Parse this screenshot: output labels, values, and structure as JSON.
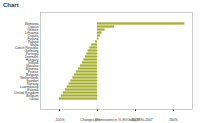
{
  "chart_data": {
    "type": "bar",
    "title": "Chart",
    "orientation": "horizontal",
    "x_label": "Changes of emissions in % (Kt/Gwh) 1990-2007",
    "categories": [
      "Romania",
      "Cyprus",
      "Greece",
      "Lithuania",
      "Croatia",
      "Finland",
      "Poland",
      "Malta",
      "Czech Republic",
      "Germany",
      "Portugal",
      "Denmark",
      "Hungary",
      "Ireland",
      "Slovakia",
      "Slovenia",
      "France",
      "Bulgaria",
      "Netherlands",
      "Sweden",
      "Norway",
      "Luxembourg",
      "Estonia",
      "United Kingdom",
      "Belgium",
      "Latvia"
    ],
    "values": [
      230,
      45,
      20,
      12,
      8,
      4,
      -5,
      -15,
      -20,
      -25,
      -28,
      -32,
      -36,
      -40,
      -45,
      -50,
      -55,
      -60,
      -65,
      -70,
      -75,
      -80,
      -85,
      -90,
      -95,
      -100
    ],
    "color": "#a3b02c",
    "xlim": [
      -150,
      250
    ],
    "xticks": [
      {
        "value": -100,
        "label": "-100%"
      },
      {
        "value": 0,
        "label": "0%"
      },
      {
        "value": 100,
        "label": "100%"
      },
      {
        "value": 200,
        "label": "200%"
      }
    ],
    "grid": false
  }
}
